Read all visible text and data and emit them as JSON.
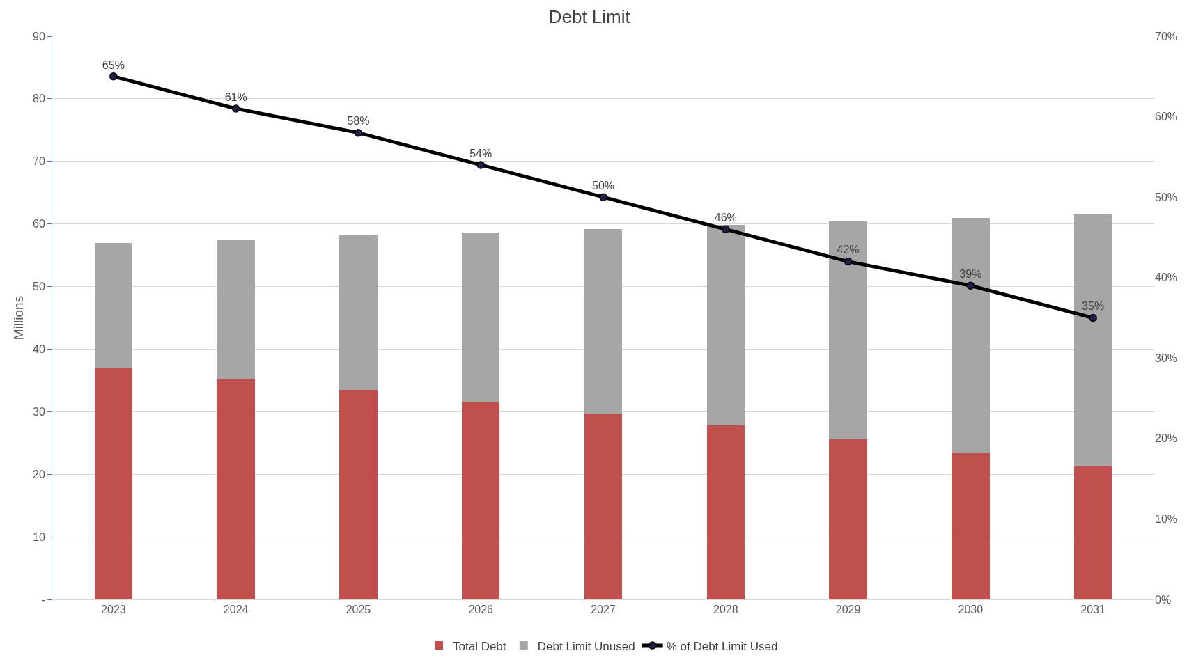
{
  "chart_data": {
    "type": "bar",
    "title": "Debt Limit",
    "ylabel": "Millions",
    "stacked": true,
    "categories": [
      "2023",
      "2024",
      "2025",
      "2026",
      "2027",
      "2028",
      "2029",
      "2030",
      "2031"
    ],
    "series": [
      {
        "name": "Total Debt",
        "color": "#c0504d",
        "values": [
          37.0,
          35.2,
          33.5,
          31.6,
          29.7,
          27.8,
          25.6,
          23.5,
          21.3
        ]
      },
      {
        "name": "Debt Limit Unused",
        "color": "#a6a6a6",
        "values": [
          20.0,
          22.3,
          24.7,
          27.0,
          29.5,
          32.0,
          34.8,
          37.5,
          40.3
        ]
      },
      {
        "name": "% of Debt Limit Used",
        "type": "line",
        "axis": "y2",
        "color": "#000000",
        "marker": "circle",
        "values": [
          65,
          61,
          58,
          54,
          50,
          46,
          42,
          39,
          35
        ],
        "value_labels": [
          "65%",
          "61%",
          "58%",
          "54%",
          "50%",
          "46%",
          "42%",
          "39%",
          "35%"
        ]
      }
    ],
    "ylim": [
      0,
      90
    ],
    "yticks": [
      {
        "value": 0,
        "label": "-"
      },
      10,
      20,
      30,
      40,
      50,
      60,
      70,
      80,
      90
    ],
    "y2lim": [
      0,
      70
    ],
    "y2ticks": [
      {
        "value": 0,
        "label": "0%"
      },
      {
        "value": 10,
        "label": "10%"
      },
      {
        "value": 20,
        "label": "20%"
      },
      {
        "value": 30,
        "label": "30%"
      },
      {
        "value": 40,
        "label": "40%"
      },
      {
        "value": 50,
        "label": "50%"
      },
      {
        "value": 60,
        "label": "60%"
      },
      {
        "value": 70,
        "label": "70%"
      }
    ],
    "grid": "y",
    "legend": "bottom"
  }
}
